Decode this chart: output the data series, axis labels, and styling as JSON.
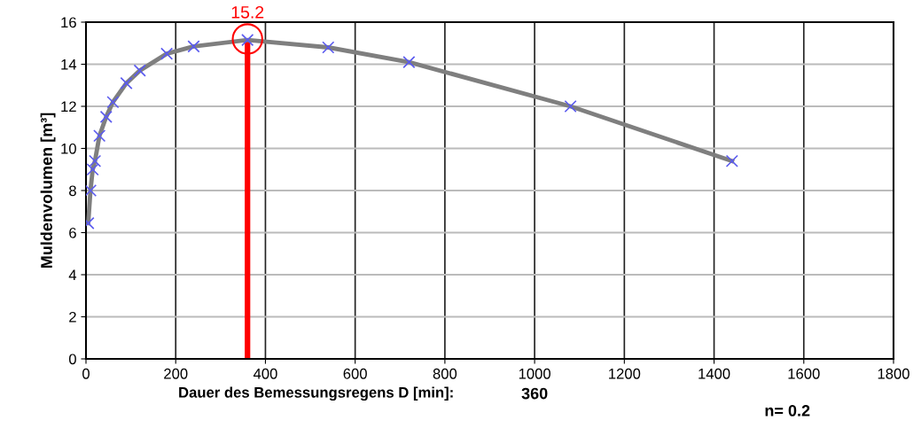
{
  "chart_data": {
    "type": "line",
    "xlabel": "Dauer des Bemessungsregens D [min]:",
    "ylabel": "Muldenvolumen [m³]",
    "x": [
      5,
      10,
      15,
      20,
      30,
      45,
      60,
      90,
      120,
      180,
      240,
      360,
      540,
      720,
      1080,
      1440
    ],
    "series": [
      {
        "color": "#7f7f7f",
        "values": [
          6.45,
          8.0,
          9.0,
          9.4,
          10.6,
          11.5,
          12.2,
          13.1,
          13.7,
          14.5,
          14.85,
          15.15,
          14.8,
          14.1,
          12.0,
          9.4
        ]
      },
      {
        "type": "scatter",
        "marker": "cross",
        "color": "#5b5bef",
        "values": [
          6.45,
          8.0,
          9.0,
          9.4,
          10.6,
          11.5,
          12.2,
          13.1,
          13.7,
          14.5,
          14.85,
          15.15,
          14.8,
          14.1,
          12.0,
          9.4
        ]
      }
    ],
    "xlim": [
      0,
      1800
    ],
    "xticks": [
      0,
      200,
      400,
      600,
      800,
      1000,
      1200,
      1400,
      1600,
      1800
    ],
    "ylim": [
      0,
      16
    ],
    "yticks": [
      0,
      2,
      4,
      6,
      8,
      10,
      12,
      14,
      16
    ],
    "grid": true,
    "ref_lines": [
      {
        "axis": "x",
        "value": 360,
        "color": "#ff0000"
      }
    ],
    "annotations": [
      {
        "text": "15.2",
        "x": 360,
        "y": 15.2
      },
      "360",
      "n= 0.2"
    ]
  }
}
